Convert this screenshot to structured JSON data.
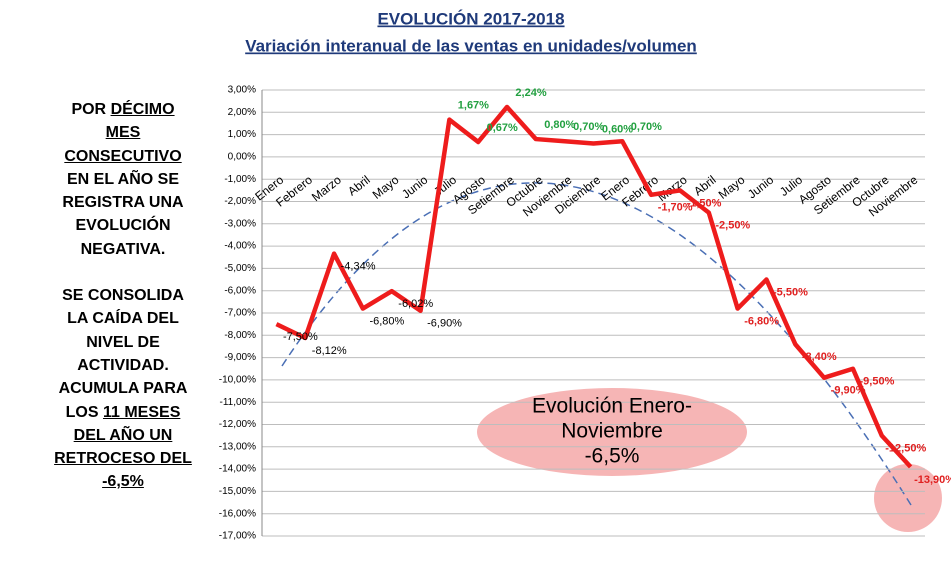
{
  "chart_data": {
    "type": "line",
    "title": "EVOLUCIÓN 2017-2018",
    "subtitle": "Variación interanual de las ventas en unidades/volumen",
    "categories": [
      "Enero",
      "Febrero",
      "Marzo",
      "Abril",
      "Mayo",
      "Junio",
      "Julio",
      "Agosto",
      "Setiembre",
      "Octubre",
      "Noviembre",
      "Diciembre",
      "Enero",
      "Febrero",
      "Marzo",
      "Abril",
      "Mayo",
      "Junio",
      "Julio",
      "Agosto",
      "Setiembre",
      "Octubre",
      "Noviembre"
    ],
    "series": [
      {
        "color": "#ee1c1c",
        "values": [
          -7.5,
          -8.12,
          -4.34,
          -6.8,
          -6.02,
          -6.9,
          1.67,
          0.67,
          2.24,
          0.8,
          0.7,
          0.6,
          0.7,
          -1.7,
          -1.5,
          -2.5,
          -6.8,
          -5.5,
          -8.4,
          -9.9,
          -9.5,
          -12.5,
          -13.9
        ],
        "value_labels": [
          "-7,50%",
          "-8,12%",
          "-4,34%",
          "-6,80%",
          "-6,02%",
          "-6,90%",
          "1,67%",
          "0,67%",
          "2,24%",
          "0,80%",
          "0,70%",
          "0,60%",
          "0,70%",
          "-1,70%",
          "-1,50%",
          "-2,50%",
          "-6,80%",
          "-5,50%",
          "-8,40%",
          "-9,90%",
          "-9,50%",
          "-12,50%",
          "-13,90%"
        ],
        "label_colors": [
          "#000",
          "#000",
          "#000",
          "#000",
          "#000",
          "#000",
          "#22a040",
          "#22a040",
          "#22a040",
          "#22a040",
          "#22a040",
          "#22a040",
          "#22a040",
          "#e02020",
          "#e02020",
          "#e02020",
          "#e02020",
          "#e02020",
          "#e02020",
          "#e02020",
          "#e02020",
          "#e02020",
          "#e02020"
        ]
      }
    ],
    "ylim": [
      -17,
      3
    ],
    "yticks": [
      {
        "value": 3,
        "label": "3,00%"
      },
      {
        "value": 2,
        "label": "2,00%"
      },
      {
        "value": 1,
        "label": "1,00%"
      },
      {
        "value": 0,
        "label": "0,00%"
      },
      {
        "value": -1,
        "label": "-1,00%"
      },
      {
        "value": -2,
        "label": "-2,00%"
      },
      {
        "value": -3,
        "label": "-3,00%"
      },
      {
        "value": -4,
        "label": "-4,00%"
      },
      {
        "value": -5,
        "label": "-5,00%"
      },
      {
        "value": -6,
        "label": "-6,00%"
      },
      {
        "value": -7,
        "label": "-7,00%"
      },
      {
        "value": -8,
        "label": "-8,00%"
      },
      {
        "value": -9,
        "label": "-9,00%"
      },
      {
        "value": -10,
        "label": "-10,00%"
      },
      {
        "value": -11,
        "label": "-11,00%"
      },
      {
        "value": -12,
        "label": "-12,00%"
      },
      {
        "value": -13,
        "label": "-13,00%"
      },
      {
        "value": -14,
        "label": "-14,00%"
      },
      {
        "value": -15,
        "label": "-15,00%"
      },
      {
        "value": -16,
        "label": "-16,00%"
      },
      {
        "value": -17,
        "label": "-17,00%"
      }
    ],
    "grid": true,
    "annotation": [
      "Evolución Enero-",
      "Noviembre",
      "-6,5%"
    ]
  },
  "side_note": [
    [
      [
        {
          "text": "POR ",
          "u": false
        },
        {
          "text": "DÉCIMO",
          "u": true
        }
      ],
      [
        {
          "text": "MES",
          "u": true
        }
      ],
      [
        {
          "text": "CONSECUTIVO",
          "u": true
        }
      ],
      [
        {
          "text": "EN EL AÑO SE",
          "u": false
        }
      ],
      [
        {
          "text": "REGISTRA UNA",
          "u": false
        }
      ],
      [
        {
          "text": "EVOLUCIÓN",
          "u": false
        }
      ],
      [
        {
          "text": "NEGATIVA.",
          "u": false
        }
      ]
    ],
    [
      [
        {
          "text": "SE CONSOLIDA",
          "u": false
        }
      ],
      [
        {
          "text": "LA CAÍDA DEL",
          "u": false
        }
      ],
      [
        {
          "text": "NIVEL DE",
          "u": false
        }
      ],
      [
        {
          "text": "ACTIVIDAD.",
          "u": false
        }
      ],
      [
        {
          "text": "ACUMULA PARA",
          "u": false
        }
      ],
      [
        {
          "text": "LOS ",
          "u": false
        },
        {
          "text": "11 MESES",
          "u": true
        }
      ],
      [
        {
          "text": "DEL AÑO UN",
          "u": true
        }
      ],
      [
        {
          "text": "RETROCESO DEL",
          "u": true
        }
      ],
      [
        {
          "text": "-6,5%",
          "u": true
        }
      ]
    ]
  ]
}
